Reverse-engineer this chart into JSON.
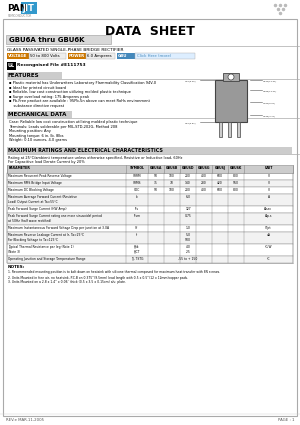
{
  "title": "DATA  SHEET",
  "part_number": "GBU6A thru GBU6K",
  "description": "GLASS PASSIVATED SINGLE-PHASE BRIDGE RECTIFIER",
  "voltage_label": "VOLTAGE",
  "voltage_value": "50 to 800 Volts",
  "power_label": "POWER",
  "power_value": "6.0 Amperes",
  "gbu_label": "GBU",
  "gbu_note": "Click Here (more)",
  "ul_text": "Recongnised File #E111753",
  "features_title": "FEATURES",
  "features": [
    "▪ Plastic material has Underwriters Laboratory Flammability Classification 94V-0",
    "▪ Ideal for printed circuit board",
    "▪ Reliable, low cost construction utilizing molded plastic technique",
    "▪ Surge overload rating: 175 Amperes peak",
    "▪ Pb-Free product are available : 95Pb-5n above can meet RoHs environment",
    "    substance directive request"
  ],
  "mech_title": "MECHANICAL DATA",
  "mech_data": [
    "Case: Reliable low cost construction utilizing molded plastic technique",
    "Terminals: Leads solderable per MIL-STD-202G, Method 208",
    "Mounting position: Any",
    "Mounting torque: 6 in. lb. 8lbs",
    "Weight: 0.10 ounces, 4.0 grams"
  ],
  "elec_title": "MAXIMUM RATINGS AND ELECTRICAL CHARACTERISTICS",
  "rating_note1": "Rating at 25°C/ambient temperature unless otherwise specified, Resistive or Inductive load, 60Hz",
  "rating_note2": "For Capacitive load Derate Current by 20%",
  "table_headers": [
    "PARAMETER",
    "SYMBOL",
    "GBU6A",
    "GBU6B",
    "GBU6D",
    "GBU6G",
    "GBU6J",
    "GBU6K",
    "UNIT"
  ],
  "table_rows": [
    [
      "Maximum Recurrent Peak Reverse Voltage",
      "VRRM",
      "50",
      "100",
      "200",
      "400",
      "600",
      "800",
      "V"
    ],
    [
      "Maximum RMS Bridge Input Voltage",
      "VRMS",
      "35",
      "70",
      "140",
      "280",
      "420",
      "560",
      "V"
    ],
    [
      "Maximum DC Blocking Voltage",
      "VDC",
      "50",
      "100",
      "200",
      "400",
      "600",
      "800",
      "V"
    ],
    [
      "Maximum Average Forward Current (Resistive\nLoad) Output Current at Ta=55°C",
      "Io",
      "",
      "",
      "6.0",
      "",
      "",
      "",
      "A"
    ],
    [
      "Peak Forward Surge Current (HW Amp)",
      "IFs",
      "",
      "",
      "127",
      "",
      "",
      "",
      "A/sec"
    ],
    [
      "Peak Forward Surge Current rating one more sinusoidal period\nat 50Hz (half wave rectified)",
      "IFsm",
      "",
      "",
      "0.75",
      "",
      "",
      "",
      "A/p.s"
    ],
    [
      "Maximum Instantaneous Forward Voltage Drop per junction at 3.0A",
      "Vf",
      "",
      "",
      "1.0",
      "",
      "",
      "",
      "V/jct"
    ],
    [
      "Maximum Reverse Leakage Current at Ir, Ta=25°C\nFor Blocking Voltage to Ta=125°C",
      "Ir",
      "",
      "",
      "5.0\n500",
      "",
      "",
      "",
      "uA"
    ],
    [
      "Typical Thermal Resistance per leg (Note 1)\n(Note 3)",
      "θJtk\nθJCT",
      "",
      "",
      "4.0\n2.5",
      "",
      "",
      "",
      "°C/W"
    ],
    [
      "Operating Junction and Storage Temperature Range",
      "TJ, TSTG",
      "",
      "",
      "-55 to + 150",
      "",
      "",
      "",
      "°C"
    ]
  ],
  "notes_title": "NOTES:",
  "notes": [
    "1. Recommended mounting position is to bolt down on heatsink with silicone thermal compound for maximum heat transfer with 8N screws.",
    "2. Units Mounted in free air, no heatsink, P.C.B on 0.375''(9.5mm) lead length with 0.5 x 0.5''(12 x 12mm)copper pads.",
    "3. Units Mounted on a 2.8 x 1.4'' x 0.06'' thick (0.5 x 3.5 x 0.15cm) alu. plate."
  ],
  "footer_rev": "REV.e MAR.11,2005",
  "footer_page": "PAGE : 1"
}
